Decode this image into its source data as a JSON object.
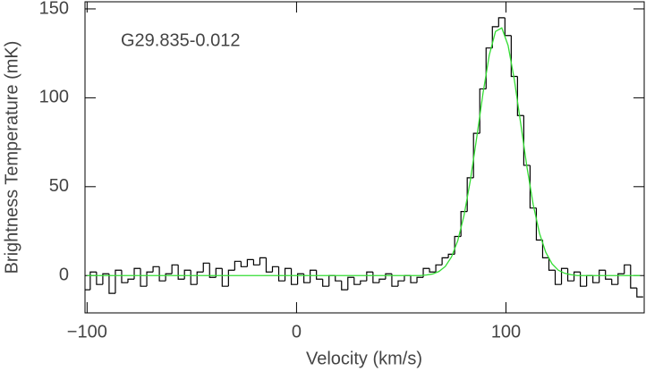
{
  "chart_data": {
    "type": "step",
    "title": "G29.835-0.012",
    "x_label": "Velocity (km/s)",
    "y_label": "Brightness Temperature (mK)",
    "xlim": [
      -101,
      166
    ],
    "ylim": [
      -21,
      154
    ],
    "xticks": [
      {
        "value": -100,
        "label": "−100"
      },
      0,
      100
    ],
    "yticks": [
      0,
      50,
      100,
      150
    ],
    "x": [
      -100,
      -97,
      -94,
      -91,
      -88,
      -85,
      -82,
      -79,
      -76,
      -73,
      -70,
      -67,
      -64,
      -61,
      -58,
      -55,
      -52,
      -49,
      -46,
      -43,
      -40,
      -37,
      -34,
      -31,
      -28,
      -25,
      -22,
      -19,
      -16,
      -13,
      -10,
      -7,
      -4,
      -1,
      2,
      5,
      8,
      11,
      14,
      17,
      20,
      23,
      26,
      29,
      32,
      35,
      38,
      41,
      44,
      47,
      50,
      53,
      56,
      59,
      62,
      65,
      68,
      71,
      74,
      77,
      80,
      83,
      86,
      89,
      92,
      95,
      98,
      101,
      104,
      107,
      110,
      113,
      116,
      119,
      122,
      125,
      128,
      131,
      134,
      137,
      140,
      143,
      146,
      149,
      152,
      155,
      158,
      161,
      164
    ],
    "spectrum": {
      "color": "#000000",
      "values": [
        -8,
        2,
        -5,
        1,
        -10,
        3,
        -4,
        -2,
        4,
        -6,
        2,
        5,
        -3,
        1,
        6,
        -2,
        3,
        -5,
        2,
        7,
        -1,
        4,
        -6,
        3,
        8,
        5,
        9,
        6,
        10,
        2,
        5,
        -3,
        4,
        -5,
        1,
        -4,
        3,
        -2,
        -6,
        0,
        -3,
        -8,
        -1,
        -5,
        -3,
        2,
        -4,
        -2,
        1,
        -6,
        -3,
        0,
        -4,
        -1,
        4,
        2,
        6,
        10,
        12,
        22,
        36,
        55,
        80,
        105,
        128,
        140,
        145,
        135,
        112,
        90,
        62,
        38,
        20,
        10,
        3,
        -5,
        4,
        -3,
        2,
        -6,
        0,
        -4,
        3,
        -2,
        -5,
        1,
        6,
        -7,
        -12
      ]
    },
    "fit": {
      "color": "#33dd33",
      "values": [
        0,
        0,
        0,
        0,
        0,
        0,
        0,
        0,
        0,
        0,
        0,
        0,
        0,
        0,
        0,
        0,
        0,
        0,
        0,
        0,
        0,
        0,
        0,
        0,
        0,
        0,
        0,
        0,
        0,
        0,
        0,
        0,
        0,
        0,
        0,
        0,
        0,
        0,
        0,
        0,
        0,
        0,
        0,
        0,
        0,
        0,
        0,
        0,
        0,
        0,
        0,
        0,
        0,
        0,
        0.3,
        0.9,
        2.3,
        5.1,
        10.5,
        19.7,
        34,
        53.6,
        77.4,
        102.3,
        123.9,
        137.3,
        139.3,
        129.5,
        110.1,
        85.8,
        61.1,
        39.9,
        23.8,
        13.1,
        6.6,
        3,
        1.3,
        0.5,
        0,
        0,
        0,
        0,
        0,
        0,
        0,
        0,
        0,
        0,
        0
      ]
    }
  }
}
